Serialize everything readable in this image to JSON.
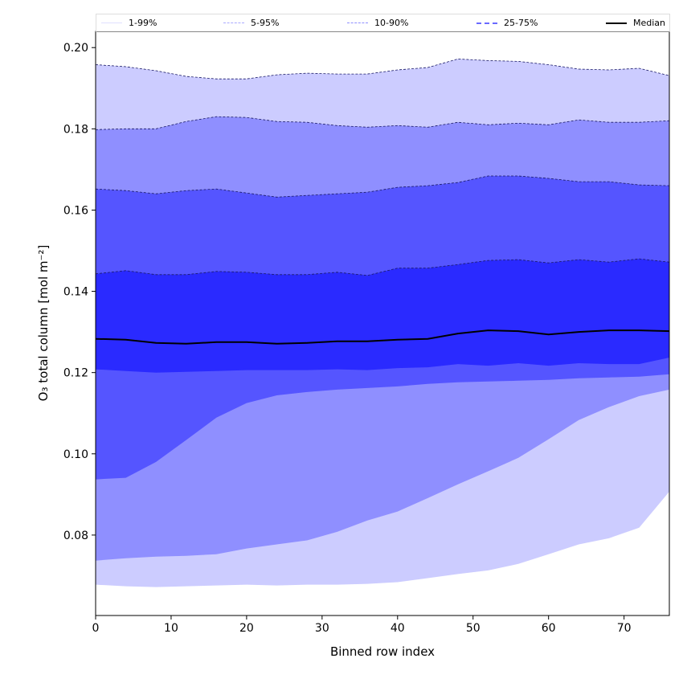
{
  "chart_data": {
    "type": "area",
    "title": "",
    "xlabel": "Binned row index",
    "ylabel": "O₃ total column [mol m⁻²]",
    "xlim": [
      0,
      76
    ],
    "ylim": [
      0.0602,
      0.204
    ],
    "xticks": [
      "0",
      "10",
      "20",
      "30",
      "40",
      "50",
      "60",
      "70"
    ],
    "xtick_values": [
      0,
      10,
      20,
      30,
      40,
      50,
      60,
      70
    ],
    "yticks": [
      "0.08",
      "0.10",
      "0.12",
      "0.14",
      "0.16",
      "0.18",
      "0.20"
    ],
    "ytick_values": [
      0.08,
      0.1,
      0.12,
      0.14,
      0.16,
      0.18,
      0.2
    ],
    "grid": false,
    "legend_position": "top, spanning width",
    "x": [
      0,
      4,
      8,
      12,
      16,
      20,
      24,
      28,
      32,
      36,
      40,
      44,
      48,
      52,
      56,
      60,
      64,
      68,
      72,
      76
    ],
    "percentiles": {
      "p1": [
        0.0678,
        0.0674,
        0.0672,
        0.0674,
        0.0676,
        0.0678,
        0.0676,
        0.0678,
        0.0678,
        0.068,
        0.0684,
        0.0694,
        0.0704,
        0.0713,
        0.0729,
        0.0753,
        0.0777,
        0.0792,
        0.0818,
        0.0907
      ],
      "p5": [
        0.0737,
        0.0743,
        0.0747,
        0.0749,
        0.0753,
        0.0767,
        0.0777,
        0.0787,
        0.0808,
        0.0836,
        0.0858,
        0.0891,
        0.0925,
        0.0957,
        0.099,
        0.1036,
        0.1083,
        0.1115,
        0.1142,
        0.1158
      ],
      "p10": [
        0.0937,
        0.0941,
        0.098,
        0.1034,
        0.1089,
        0.1125,
        0.1144,
        0.1152,
        0.1158,
        0.1162,
        0.1166,
        0.1172,
        0.1176,
        0.1178,
        0.118,
        0.1182,
        0.1186,
        0.1188,
        0.119,
        0.1196
      ],
      "p25": [
        0.1208,
        0.1204,
        0.12,
        0.1202,
        0.1204,
        0.1206,
        0.1206,
        0.1206,
        0.1208,
        0.1206,
        0.1211,
        0.1213,
        0.1221,
        0.1217,
        0.1223,
        0.1217,
        0.1223,
        0.1221,
        0.1221,
        0.1237
      ],
      "p50": [
        0.1283,
        0.1281,
        0.1273,
        0.1271,
        0.1275,
        0.1275,
        0.1271,
        0.1273,
        0.1277,
        0.1277,
        0.1281,
        0.1283,
        0.1296,
        0.1304,
        0.1302,
        0.1294,
        0.13,
        0.1304,
        0.1304,
        0.1302
      ],
      "p75": [
        0.1443,
        0.1451,
        0.1441,
        0.1441,
        0.1449,
        0.1447,
        0.1441,
        0.1441,
        0.1447,
        0.1439,
        0.1457,
        0.1457,
        0.1466,
        0.1476,
        0.1478,
        0.147,
        0.1478,
        0.1472,
        0.148,
        0.1472
      ],
      "p90": [
        0.1652,
        0.1648,
        0.164,
        0.1648,
        0.1652,
        0.1642,
        0.1632,
        0.1636,
        0.164,
        0.1644,
        0.1656,
        0.166,
        0.1668,
        0.1684,
        0.1684,
        0.1678,
        0.167,
        0.167,
        0.1662,
        0.166
      ],
      "p95": [
        0.1798,
        0.18,
        0.18,
        0.1818,
        0.183,
        0.1828,
        0.1818,
        0.1816,
        0.1808,
        0.1804,
        0.1808,
        0.1804,
        0.1816,
        0.181,
        0.1814,
        0.181,
        0.1822,
        0.1816,
        0.1816,
        0.182
      ],
      "p99": [
        0.1958,
        0.1953,
        0.1943,
        0.1929,
        0.1923,
        0.1923,
        0.1933,
        0.1937,
        0.1935,
        0.1935,
        0.1945,
        0.1951,
        0.1972,
        0.1968,
        0.1966,
        0.1958,
        0.1947,
        0.1945,
        0.1949,
        0.1931
      ]
    },
    "bands": [
      {
        "name": "1-99%",
        "lower": "p1",
        "upper": "p99",
        "color": "#ccccff"
      },
      {
        "name": "5-95%",
        "lower": "p5",
        "upper": "p95",
        "color": "#8f8fff"
      },
      {
        "name": "10-90%",
        "lower": "p10",
        "upper": "p90",
        "color": "#5555ff"
      },
      {
        "name": "25-75%",
        "lower": "p25",
        "upper": "p75",
        "color": "#2a2aff"
      }
    ],
    "median": {
      "name": "Median",
      "key": "p50",
      "color": "#000000"
    }
  }
}
